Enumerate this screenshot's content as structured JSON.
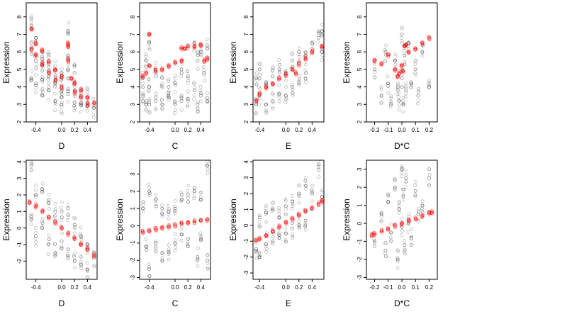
{
  "figure": {
    "background": "#ffffff"
  },
  "colors": {
    "observed": "#333333",
    "fitted": "#ff0000"
  },
  "chart_data": [
    {
      "type": "scatter",
      "xlabel": "D",
      "ylabel": "Expression",
      "xlim": [
        -0.55,
        0.55
      ],
      "ylim": [
        2,
        8.8
      ],
      "xticks": [
        -0.4,
        0.0,
        0.2,
        0.4
      ],
      "xtick_labels": [
        "-0.4",
        "0.0",
        "0.2",
        "0.4"
      ],
      "yticks": [
        2,
        3,
        4,
        5,
        6,
        7,
        8
      ],
      "ytick_labels": [
        "2",
        "3",
        "4",
        "5",
        "6",
        "7",
        "8"
      ],
      "series": [
        {
          "role": "observed",
          "color": "#333333",
          "x": [
            -0.47,
            -0.47,
            -0.47,
            -0.4,
            -0.4,
            -0.4,
            -0.3,
            -0.3,
            -0.3,
            -0.3,
            -0.2,
            -0.2,
            -0.2,
            -0.1,
            -0.1,
            -0.1,
            0.0,
            0.0,
            0.0,
            0.0,
            0.1,
            0.1,
            0.1,
            0.1,
            0.2,
            0.2,
            0.2,
            0.3,
            0.3,
            0.4,
            0.4,
            0.5
          ],
          "y": [
            7.5,
            6.2,
            4.5,
            6.8,
            5.5,
            4.2,
            6.0,
            5.2,
            4.4,
            3.5,
            5.5,
            4.6,
            3.8,
            5.0,
            4.2,
            3.2,
            4.8,
            4.0,
            3.4,
            3.0,
            7.2,
            5.8,
            4.5,
            3.6,
            4.8,
            3.8,
            3.1,
            3.5,
            3.0,
            3.4,
            2.9,
            2.8
          ]
        },
        {
          "role": "fitted",
          "color": "#ff0000",
          "x": [
            -0.47,
            -0.47,
            -0.4,
            -0.4,
            -0.3,
            -0.3,
            -0.2,
            -0.2,
            -0.1,
            -0.1,
            0.0,
            0.0,
            0.1,
            0.1,
            0.1,
            0.15,
            0.2,
            0.2,
            0.3,
            0.3,
            0.4,
            0.4,
            0.5
          ],
          "y": [
            7.3,
            6.2,
            6.5,
            5.8,
            6.1,
            5.3,
            5.4,
            4.8,
            5.0,
            4.4,
            4.6,
            4.0,
            6.5,
            6.3,
            5.5,
            4.5,
            4.2,
            3.7,
            3.8,
            3.4,
            3.4,
            3.0,
            3.1
          ]
        }
      ]
    },
    {
      "type": "scatter",
      "xlabel": "C",
      "ylabel": "Expression",
      "xlim": [
        -0.55,
        0.55
      ],
      "ylim": [
        2,
        8.8
      ],
      "xticks": [
        -0.4,
        0.0,
        0.2,
        0.4
      ],
      "xtick_labels": [
        "-0.4",
        "0.0",
        "0.2",
        "0.4"
      ],
      "yticks": [
        2,
        3,
        4,
        5,
        6,
        7,
        8
      ],
      "ytick_labels": [
        "2",
        "3",
        "4",
        "5",
        "6",
        "7",
        "8"
      ],
      "series": [
        {
          "role": "observed",
          "color": "#333333",
          "x": [
            -0.5,
            -0.5,
            -0.45,
            -0.45,
            -0.4,
            -0.4,
            -0.4,
            -0.3,
            -0.3,
            -0.2,
            -0.2,
            -0.1,
            -0.1,
            0.0,
            0.0,
            0.1,
            0.1,
            0.2,
            0.2,
            0.3,
            0.3,
            0.35,
            0.35,
            0.4,
            0.4,
            0.45,
            0.5,
            0.5
          ],
          "y": [
            3.2,
            4.5,
            5.5,
            3.0,
            6.5,
            4.0,
            3.0,
            5.0,
            3.2,
            4.5,
            3.0,
            4.0,
            3.5,
            4.2,
            3.0,
            5.0,
            3.2,
            4.6,
            3.3,
            6.5,
            3.8,
            5.5,
            3.0,
            6.0,
            3.5,
            4.8,
            6.2,
            3.2
          ]
        },
        {
          "role": "fitted",
          "color": "#ff0000",
          "x": [
            -0.5,
            -0.45,
            -0.4,
            -0.4,
            -0.3,
            -0.2,
            -0.1,
            0.0,
            0.1,
            0.1,
            0.15,
            0.2,
            0.3,
            0.4,
            0.45,
            0.5
          ],
          "y": [
            4.6,
            4.8,
            7.0,
            5.2,
            4.9,
            5.0,
            5.2,
            5.4,
            5.5,
            6.2,
            6.2,
            6.3,
            6.3,
            6.4,
            5.5,
            5.6
          ]
        }
      ]
    },
    {
      "type": "scatter",
      "xlabel": "E",
      "ylabel": "Expression",
      "xlim": [
        -0.5,
        0.58
      ],
      "ylim": [
        2,
        8.8
      ],
      "xticks": [
        -0.4,
        0.0,
        0.2,
        0.4
      ],
      "xtick_labels": [
        "-0.4",
        "0.0",
        "0.2",
        "0.4"
      ],
      "yticks": [
        2,
        3,
        4,
        5,
        6,
        7,
        8
      ],
      "ytick_labels": [
        "2",
        "3",
        "4",
        "5",
        "6",
        "7",
        "8"
      ],
      "series": [
        {
          "role": "observed",
          "color": "#333333",
          "x": [
            -0.45,
            -0.45,
            -0.4,
            -0.4,
            -0.3,
            -0.3,
            -0.2,
            -0.2,
            -0.1,
            -0.1,
            0.0,
            0.0,
            0.1,
            0.1,
            0.2,
            0.2,
            0.3,
            0.3,
            0.4,
            0.5,
            0.55,
            0.55
          ],
          "y": [
            4.5,
            3.0,
            5.0,
            3.5,
            4.2,
            3.0,
            4.6,
            3.2,
            5.0,
            3.6,
            4.8,
            3.5,
            5.5,
            4.0,
            6.0,
            4.2,
            5.8,
            4.5,
            6.5,
            6.8,
            7.2,
            6.0
          ]
        },
        {
          "role": "fitted",
          "color": "#ff0000",
          "x": [
            -0.45,
            -0.4,
            -0.3,
            -0.2,
            -0.1,
            0.0,
            0.1,
            0.15,
            0.2,
            0.3,
            0.4,
            0.55
          ],
          "y": [
            3.2,
            3.6,
            4.0,
            4.2,
            4.5,
            4.7,
            5.0,
            4.8,
            5.3,
            5.6,
            6.0,
            6.3
          ]
        }
      ]
    },
    {
      "type": "scatter",
      "xlabel": "D*C",
      "ylabel": "Expression",
      "xlim": [
        -0.26,
        0.26
      ],
      "ylim": [
        2,
        8.8
      ],
      "xticks": [
        -0.2,
        -0.1,
        0.0,
        0.1,
        0.2
      ],
      "xtick_labels": [
        "-0.2",
        "-0.1",
        "0.0",
        "0.1",
        "0.2"
      ],
      "yticks": [
        2,
        3,
        4,
        5,
        6,
        7,
        8
      ],
      "ytick_labels": [
        "2",
        "3",
        "4",
        "5",
        "6",
        "7",
        "8"
      ],
      "series": [
        {
          "role": "observed",
          "color": "#333333",
          "x": [
            -0.2,
            -0.15,
            -0.12,
            -0.1,
            -0.08,
            -0.05,
            -0.03,
            -0.02,
            0.0,
            0.0,
            0.01,
            0.02,
            0.03,
            0.05,
            0.07,
            0.1,
            0.12,
            0.15,
            0.2
          ],
          "y": [
            5.0,
            3.5,
            6.0,
            4.2,
            3.0,
            5.5,
            4.0,
            3.2,
            7.0,
            4.5,
            3.0,
            5.8,
            3.8,
            6.5,
            4.2,
            5.0,
            3.5,
            6.0,
            4.0
          ]
        },
        {
          "role": "fitted",
          "color": "#ff0000",
          "x": [
            -0.2,
            -0.15,
            -0.1,
            -0.05,
            -0.03,
            -0.02,
            0.0,
            0.01,
            0.02,
            0.03,
            0.05,
            0.1,
            0.15,
            0.2
          ],
          "y": [
            5.5,
            5.3,
            5.8,
            5.0,
            4.6,
            4.8,
            5.2,
            4.9,
            6.3,
            6.4,
            6.0,
            6.2,
            6.5,
            6.8
          ]
        }
      ]
    },
    {
      "type": "scatter",
      "xlabel": "D",
      "ylabel": "Expression",
      "xlim": [
        -0.55,
        0.55
      ],
      "ylim": [
        -3.1,
        4.1
      ],
      "xticks": [
        -0.4,
        0.0,
        0.2,
        0.4
      ],
      "xtick_labels": [
        "-0.4",
        "0.0",
        "0.2",
        "0.4"
      ],
      "yticks": [
        -2,
        -1,
        0,
        1,
        2,
        3,
        4
      ],
      "ytick_labels": [
        "-2",
        "-1",
        "0",
        "1",
        "2",
        "3",
        "4"
      ],
      "series": [
        {
          "role": "observed",
          "color": "#333333",
          "x": [
            -0.47,
            -0.47,
            -0.4,
            -0.4,
            -0.3,
            -0.3,
            -0.2,
            -0.2,
            -0.1,
            -0.1,
            0.0,
            0.0,
            0.1,
            0.1,
            0.2,
            0.2,
            0.3,
            0.3,
            0.4,
            0.4,
            0.5
          ],
          "y": [
            3.5,
            0.5,
            2.0,
            -0.5,
            2.2,
            0.0,
            1.5,
            -1.0,
            1.0,
            -1.5,
            1.0,
            -0.8,
            0.8,
            -1.8,
            0.2,
            -2.0,
            -0.5,
            -2.2,
            -1.0,
            -2.5,
            -1.8
          ]
        },
        {
          "role": "fitted",
          "color": "#ff0000",
          "x": [
            -0.5,
            -0.4,
            -0.3,
            -0.2,
            -0.1,
            0.0,
            0.1,
            0.2,
            0.3,
            0.4,
            0.5
          ],
          "y": [
            1.6,
            1.3,
            1.0,
            0.65,
            0.35,
            0.0,
            -0.35,
            -0.65,
            -1.0,
            -1.3,
            -1.65
          ]
        }
      ]
    },
    {
      "type": "scatter",
      "xlabel": "C",
      "ylabel": "Expression",
      "xlim": [
        -0.55,
        0.55
      ],
      "ylim": [
        -3.1,
        3.8
      ],
      "xticks": [
        -0.4,
        0.0,
        0.2,
        0.4
      ],
      "xtick_labels": [
        "-0.4",
        "0.0",
        "0.2",
        "0.4"
      ],
      "yticks": [
        -3,
        -2,
        -1,
        0,
        1,
        2,
        3
      ],
      "ytick_labels": [
        "-3",
        "-2",
        "-1",
        "0",
        "1",
        "2",
        "3"
      ],
      "series": [
        {
          "role": "observed",
          "color": "#333333",
          "x": [
            -0.5,
            -0.45,
            -0.4,
            -0.4,
            -0.3,
            -0.3,
            -0.2,
            -0.2,
            -0.1,
            -0.1,
            0.0,
            0.0,
            0.1,
            0.1,
            0.2,
            0.2,
            0.3,
            0.35,
            0.4,
            0.4,
            0.5,
            0.5
          ],
          "y": [
            1.0,
            -1.2,
            2.0,
            -2.5,
            1.5,
            -1.0,
            1.0,
            -2.0,
            0.8,
            -1.5,
            1.0,
            -1.0,
            1.5,
            -0.5,
            1.8,
            -1.2,
            2.0,
            -1.8,
            1.5,
            -0.8,
            3.5,
            -2.0
          ]
        },
        {
          "role": "fitted",
          "color": "#ff0000",
          "x": [
            -0.5,
            -0.4,
            -0.3,
            -0.2,
            -0.1,
            0.0,
            0.1,
            0.2,
            0.3,
            0.4,
            0.5
          ],
          "y": [
            -0.35,
            -0.28,
            -0.2,
            -0.12,
            -0.05,
            0.02,
            0.1,
            0.17,
            0.24,
            0.3,
            0.36
          ]
        }
      ]
    },
    {
      "type": "scatter",
      "xlabel": "E",
      "ylabel": "Expression",
      "xlim": [
        -0.5,
        0.58
      ],
      "ylim": [
        -3.4,
        4.1
      ],
      "xticks": [
        -0.4,
        0.0,
        0.2,
        0.4
      ],
      "xtick_labels": [
        "-0.4",
        "0.0",
        "0.2",
        "0.4"
      ],
      "yticks": [
        -3,
        -2,
        -1,
        0,
        1,
        2,
        3,
        4
      ],
      "ytick_labels": [
        "-3",
        "-2",
        "-1",
        "0",
        "1",
        "2",
        "3",
        "4"
      ],
      "series": [
        {
          "role": "observed",
          "color": "#333333",
          "x": [
            -0.45,
            -0.4,
            -0.4,
            -0.3,
            -0.3,
            -0.2,
            -0.2,
            -0.1,
            -0.1,
            0.0,
            0.0,
            0.1,
            0.1,
            0.2,
            0.2,
            0.3,
            0.3,
            0.4,
            0.5,
            0.55
          ],
          "y": [
            -1.5,
            0.5,
            -2.0,
            0.8,
            -1.2,
            1.0,
            -1.0,
            0.5,
            -0.8,
            1.2,
            -0.5,
            1.5,
            -0.2,
            2.0,
            0.0,
            2.5,
            0.3,
            2.0,
            3.5,
            1.8
          ]
        },
        {
          "role": "fitted",
          "color": "#ff0000",
          "x": [
            -0.45,
            -0.4,
            -0.3,
            -0.2,
            -0.1,
            0.0,
            0.1,
            0.2,
            0.3,
            0.4,
            0.5,
            0.55
          ],
          "y": [
            -1.0,
            -0.85,
            -0.6,
            -0.35,
            -0.1,
            0.15,
            0.4,
            0.65,
            0.9,
            1.1,
            1.35,
            1.5
          ]
        }
      ]
    },
    {
      "type": "scatter",
      "xlabel": "D*C",
      "ylabel": "Expression",
      "xlim": [
        -0.26,
        0.26
      ],
      "ylim": [
        -3.1,
        3.5
      ],
      "xticks": [
        -0.2,
        -0.1,
        0.0,
        0.1,
        0.2
      ],
      "xtick_labels": [
        "-0.2",
        "-0.1",
        "0.0",
        "0.1",
        "0.2"
      ],
      "yticks": [
        -3,
        -2,
        -1,
        0,
        1,
        2,
        3
      ],
      "ytick_labels": [
        "-3",
        "-2",
        "-1",
        "0",
        "1",
        "2",
        "3"
      ],
      "series": [
        {
          "role": "observed",
          "color": "#333333",
          "x": [
            -0.2,
            -0.15,
            -0.12,
            -0.1,
            -0.08,
            -0.05,
            -0.03,
            -0.02,
            0.0,
            0.0,
            0.01,
            0.02,
            0.03,
            0.05,
            0.07,
            0.1,
            0.12,
            0.15,
            0.2
          ],
          "y": [
            -1.0,
            0.5,
            -1.5,
            1.2,
            -0.5,
            2.0,
            -2.0,
            0.8,
            3.0,
            -0.2,
            1.5,
            -1.2,
            2.5,
            0.0,
            -0.8,
            1.8,
            0.5,
            1.0,
            2.5
          ]
        },
        {
          "role": "fitted",
          "color": "#ff0000",
          "x": [
            -0.22,
            -0.2,
            -0.15,
            -0.1,
            -0.05,
            0.0,
            0.05,
            0.1,
            0.15,
            0.2,
            0.22
          ],
          "y": [
            -0.65,
            -0.58,
            -0.44,
            -0.3,
            -0.16,
            0.0,
            0.14,
            0.28,
            0.42,
            0.56,
            0.62
          ]
        }
      ]
    }
  ]
}
